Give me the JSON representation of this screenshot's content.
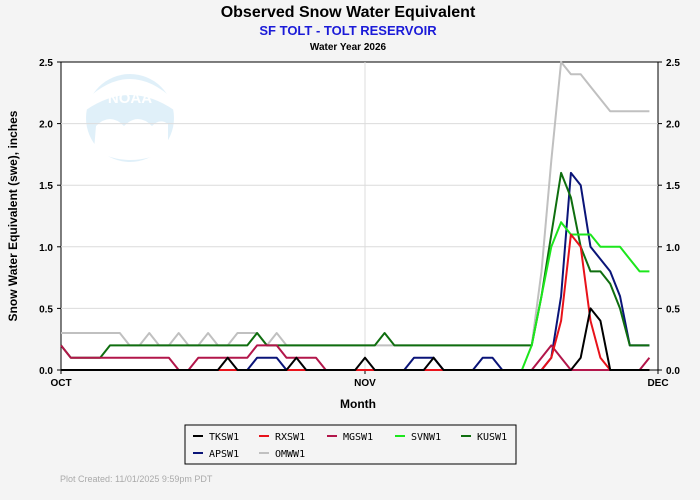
{
  "chart_data": {
    "type": "line",
    "title": "Observed Snow Water Equivalent",
    "subtitle": "SF TOLT - TOLT RESERVOIR",
    "water_year": "Water Year 2026",
    "xlabel": "Month",
    "ylabel": "Snow Water Equivalent (swe),  inches",
    "x_ticks": [
      "OCT",
      "NOV",
      "DEC"
    ],
    "ylim": [
      0,
      2.5
    ],
    "y_ticks": [
      "0.0",
      "0.5",
      "1.0",
      "1.5",
      "2.0",
      "2.5"
    ],
    "grid": true,
    "legend_position": "bottom",
    "logo_text": "NOAA",
    "footer": "Plot Created: 11/01/2025 9:59pm PDT",
    "series": [
      {
        "name": "TKSW1",
        "color": "#000000",
        "values": [
          0,
          0,
          0,
          0,
          0,
          0,
          0,
          0,
          0,
          0,
          0,
          0,
          0,
          0,
          0,
          0,
          0,
          0.1,
          0,
          0,
          0,
          0,
          0,
          0,
          0.1,
          0,
          0,
          0,
          0,
          0,
          0,
          0.1,
          0,
          0,
          0,
          0,
          0,
          0,
          0.1,
          0,
          0,
          0,
          0,
          0,
          0,
          0,
          0,
          0,
          0,
          0,
          0,
          0,
          0,
          0.1,
          0.5,
          0.4,
          0,
          0,
          0,
          0,
          0
        ]
      },
      {
        "name": "RXSW1",
        "color": "#e8121a",
        "values": [
          0,
          0,
          0,
          0,
          0,
          0,
          0,
          0,
          0,
          0,
          0,
          0,
          0,
          0,
          0,
          0,
          0,
          0,
          0,
          0,
          0,
          0,
          0,
          0,
          0,
          0,
          0,
          0,
          0,
          0,
          0,
          0,
          0,
          0,
          0,
          0,
          0,
          0,
          0,
          0,
          0,
          0,
          0,
          0,
          0,
          0,
          0,
          0,
          0,
          0,
          0.1,
          0.4,
          1.1,
          1.0,
          0.4,
          0.1,
          0,
          0,
          0,
          0,
          0
        ]
      },
      {
        "name": "MGSW1",
        "color": "#b2164a",
        "values": [
          0.2,
          0.1,
          0.1,
          0.1,
          0.1,
          0.1,
          0.1,
          0.1,
          0.1,
          0.1,
          0.1,
          0.1,
          0,
          0,
          0.1,
          0.1,
          0.1,
          0.1,
          0.1,
          0.1,
          0.2,
          0.2,
          0.2,
          0.1,
          0.1,
          0.1,
          0.1,
          0,
          0,
          0,
          0,
          0,
          0,
          0,
          0,
          0,
          0,
          0,
          0,
          0,
          0,
          0,
          0,
          0,
          0,
          0,
          0,
          0,
          0,
          0.1,
          0.2,
          0.1,
          0,
          0,
          0,
          0,
          0,
          0,
          0,
          0,
          0.1
        ]
      },
      {
        "name": "SVNW1",
        "color": "#1ce61c",
        "values": [
          0,
          0,
          0,
          0,
          0,
          0,
          0,
          0,
          0,
          0,
          0,
          0,
          0,
          0,
          0,
          0,
          0,
          0,
          0,
          0,
          0,
          0,
          0,
          0,
          0,
          0,
          0,
          0,
          0,
          0,
          0,
          0,
          0,
          0,
          0,
          0,
          0,
          0,
          0,
          0,
          0,
          0,
          0,
          0,
          0,
          0,
          0,
          0,
          0.2,
          0.6,
          1.0,
          1.2,
          1.1,
          1.1,
          1.1,
          1.0,
          1.0,
          1.0,
          0.9,
          0.8,
          0.8
        ]
      },
      {
        "name": "KUSW1",
        "color": "#0f6e0f",
        "values": [
          0.2,
          0.1,
          0.1,
          0.1,
          0.1,
          0.2,
          0.2,
          0.2,
          0.2,
          0.2,
          0.2,
          0.2,
          0.2,
          0.2,
          0.2,
          0.2,
          0.2,
          0.2,
          0.2,
          0.2,
          0.3,
          0.2,
          0.2,
          0.2,
          0.2,
          0.2,
          0.2,
          0.2,
          0.2,
          0.2,
          0.2,
          0.2,
          0.2,
          0.3,
          0.2,
          0.2,
          0.2,
          0.2,
          0.2,
          0.2,
          0.2,
          0.2,
          0.2,
          0.2,
          0.2,
          0.2,
          0.2,
          0.2,
          0.2,
          0.6,
          1.1,
          1.6,
          1.4,
          1.0,
          0.8,
          0.8,
          0.7,
          0.5,
          0.2,
          0.2,
          0.2
        ]
      },
      {
        "name": "APSW1",
        "color": "#0a1478",
        "values": [
          0,
          0,
          0,
          0,
          0,
          0,
          0,
          0,
          0,
          0,
          0,
          0,
          0,
          0,
          0,
          0,
          0,
          0,
          0,
          0,
          0.1,
          0.1,
          0.1,
          0,
          0,
          0,
          0,
          0,
          0,
          0,
          0,
          0,
          0,
          0,
          0,
          0,
          0.1,
          0.1,
          0.1,
          0,
          0,
          0,
          0,
          0.1,
          0.1,
          0,
          0,
          0,
          0,
          0,
          0.1,
          0.6,
          1.6,
          1.5,
          1.0,
          0.9,
          0.8,
          0.6,
          0.2,
          0.2,
          0.2
        ]
      },
      {
        "name": "OMWW1",
        "color": "#c0c0c0",
        "values": [
          0.3,
          0.3,
          0.3,
          0.3,
          0.3,
          0.3,
          0.3,
          0.2,
          0.2,
          0.3,
          0.2,
          0.2,
          0.3,
          0.2,
          0.2,
          0.3,
          0.2,
          0.2,
          0.3,
          0.3,
          0.3,
          0.2,
          0.3,
          0.2,
          0.2,
          0.2,
          0.2,
          0.2,
          0.2,
          0.2,
          0.2,
          0.2,
          0.2,
          0.2,
          0.2,
          0.2,
          0.2,
          0.2,
          0.2,
          0.2,
          0.2,
          0.2,
          0.2,
          0.2,
          0.2,
          0.2,
          0.2,
          0.2,
          0.2,
          0.8,
          1.7,
          2.5,
          2.4,
          2.4,
          2.3,
          2.2,
          2.1,
          2.1,
          2.1,
          2.1,
          2.1
        ]
      }
    ]
  }
}
